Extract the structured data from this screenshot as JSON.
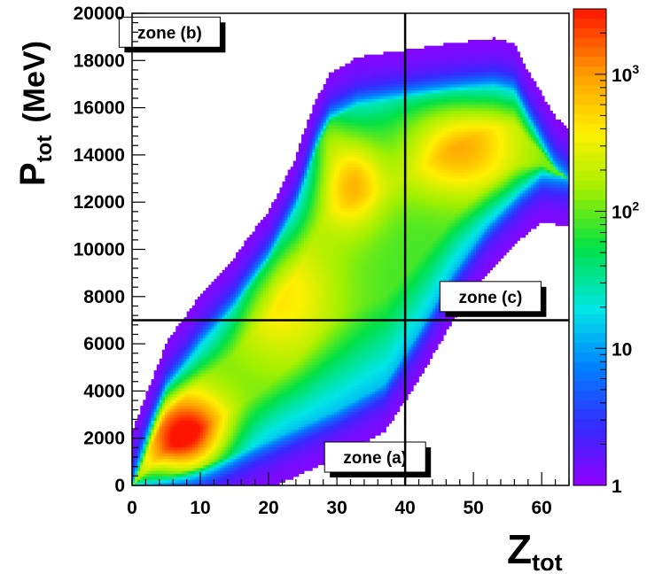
{
  "chart_data": {
    "type": "heatmap",
    "title": "",
    "xlabel": {
      "main": "Z",
      "sub": "tot"
    },
    "ylabel": {
      "main": "P",
      "sub": "tot",
      "unit": "(MeV)"
    },
    "xlim": [
      0,
      64
    ],
    "ylim": [
      0,
      20000
    ],
    "x_ticks": [
      0,
      10,
      20,
      30,
      40,
      50,
      60
    ],
    "y_ticks": [
      0,
      2000,
      4000,
      6000,
      8000,
      10000,
      12000,
      14000,
      16000,
      18000,
      20000
    ],
    "colorbar": {
      "scale": "log",
      "range": [
        1,
        3000
      ],
      "ticks": [
        {
          "value": 1,
          "label": "1"
        },
        {
          "value": 10,
          "label": "10"
        },
        {
          "value": 100,
          "label": "10",
          "sup": "2"
        },
        {
          "value": 1000,
          "label": "10",
          "sup": "3"
        }
      ]
    },
    "cut_lines": {
      "x": 40,
      "y": 7000
    },
    "zones": [
      {
        "label": "zone (a)",
        "x": 35.6,
        "y": 1200
      },
      {
        "label": "zone (b)",
        "x": 5.5,
        "y": 19200
      },
      {
        "label": "zone (c)",
        "x": 52.5,
        "y": 8000
      }
    ],
    "density_peaks": [
      {
        "z": 8,
        "p": 2000,
        "count": 3000
      },
      {
        "z": 32,
        "p": 13000,
        "count": 1500
      },
      {
        "z": 48,
        "p": 14000,
        "count": 800
      }
    ],
    "grid": false,
    "legend": "none"
  }
}
